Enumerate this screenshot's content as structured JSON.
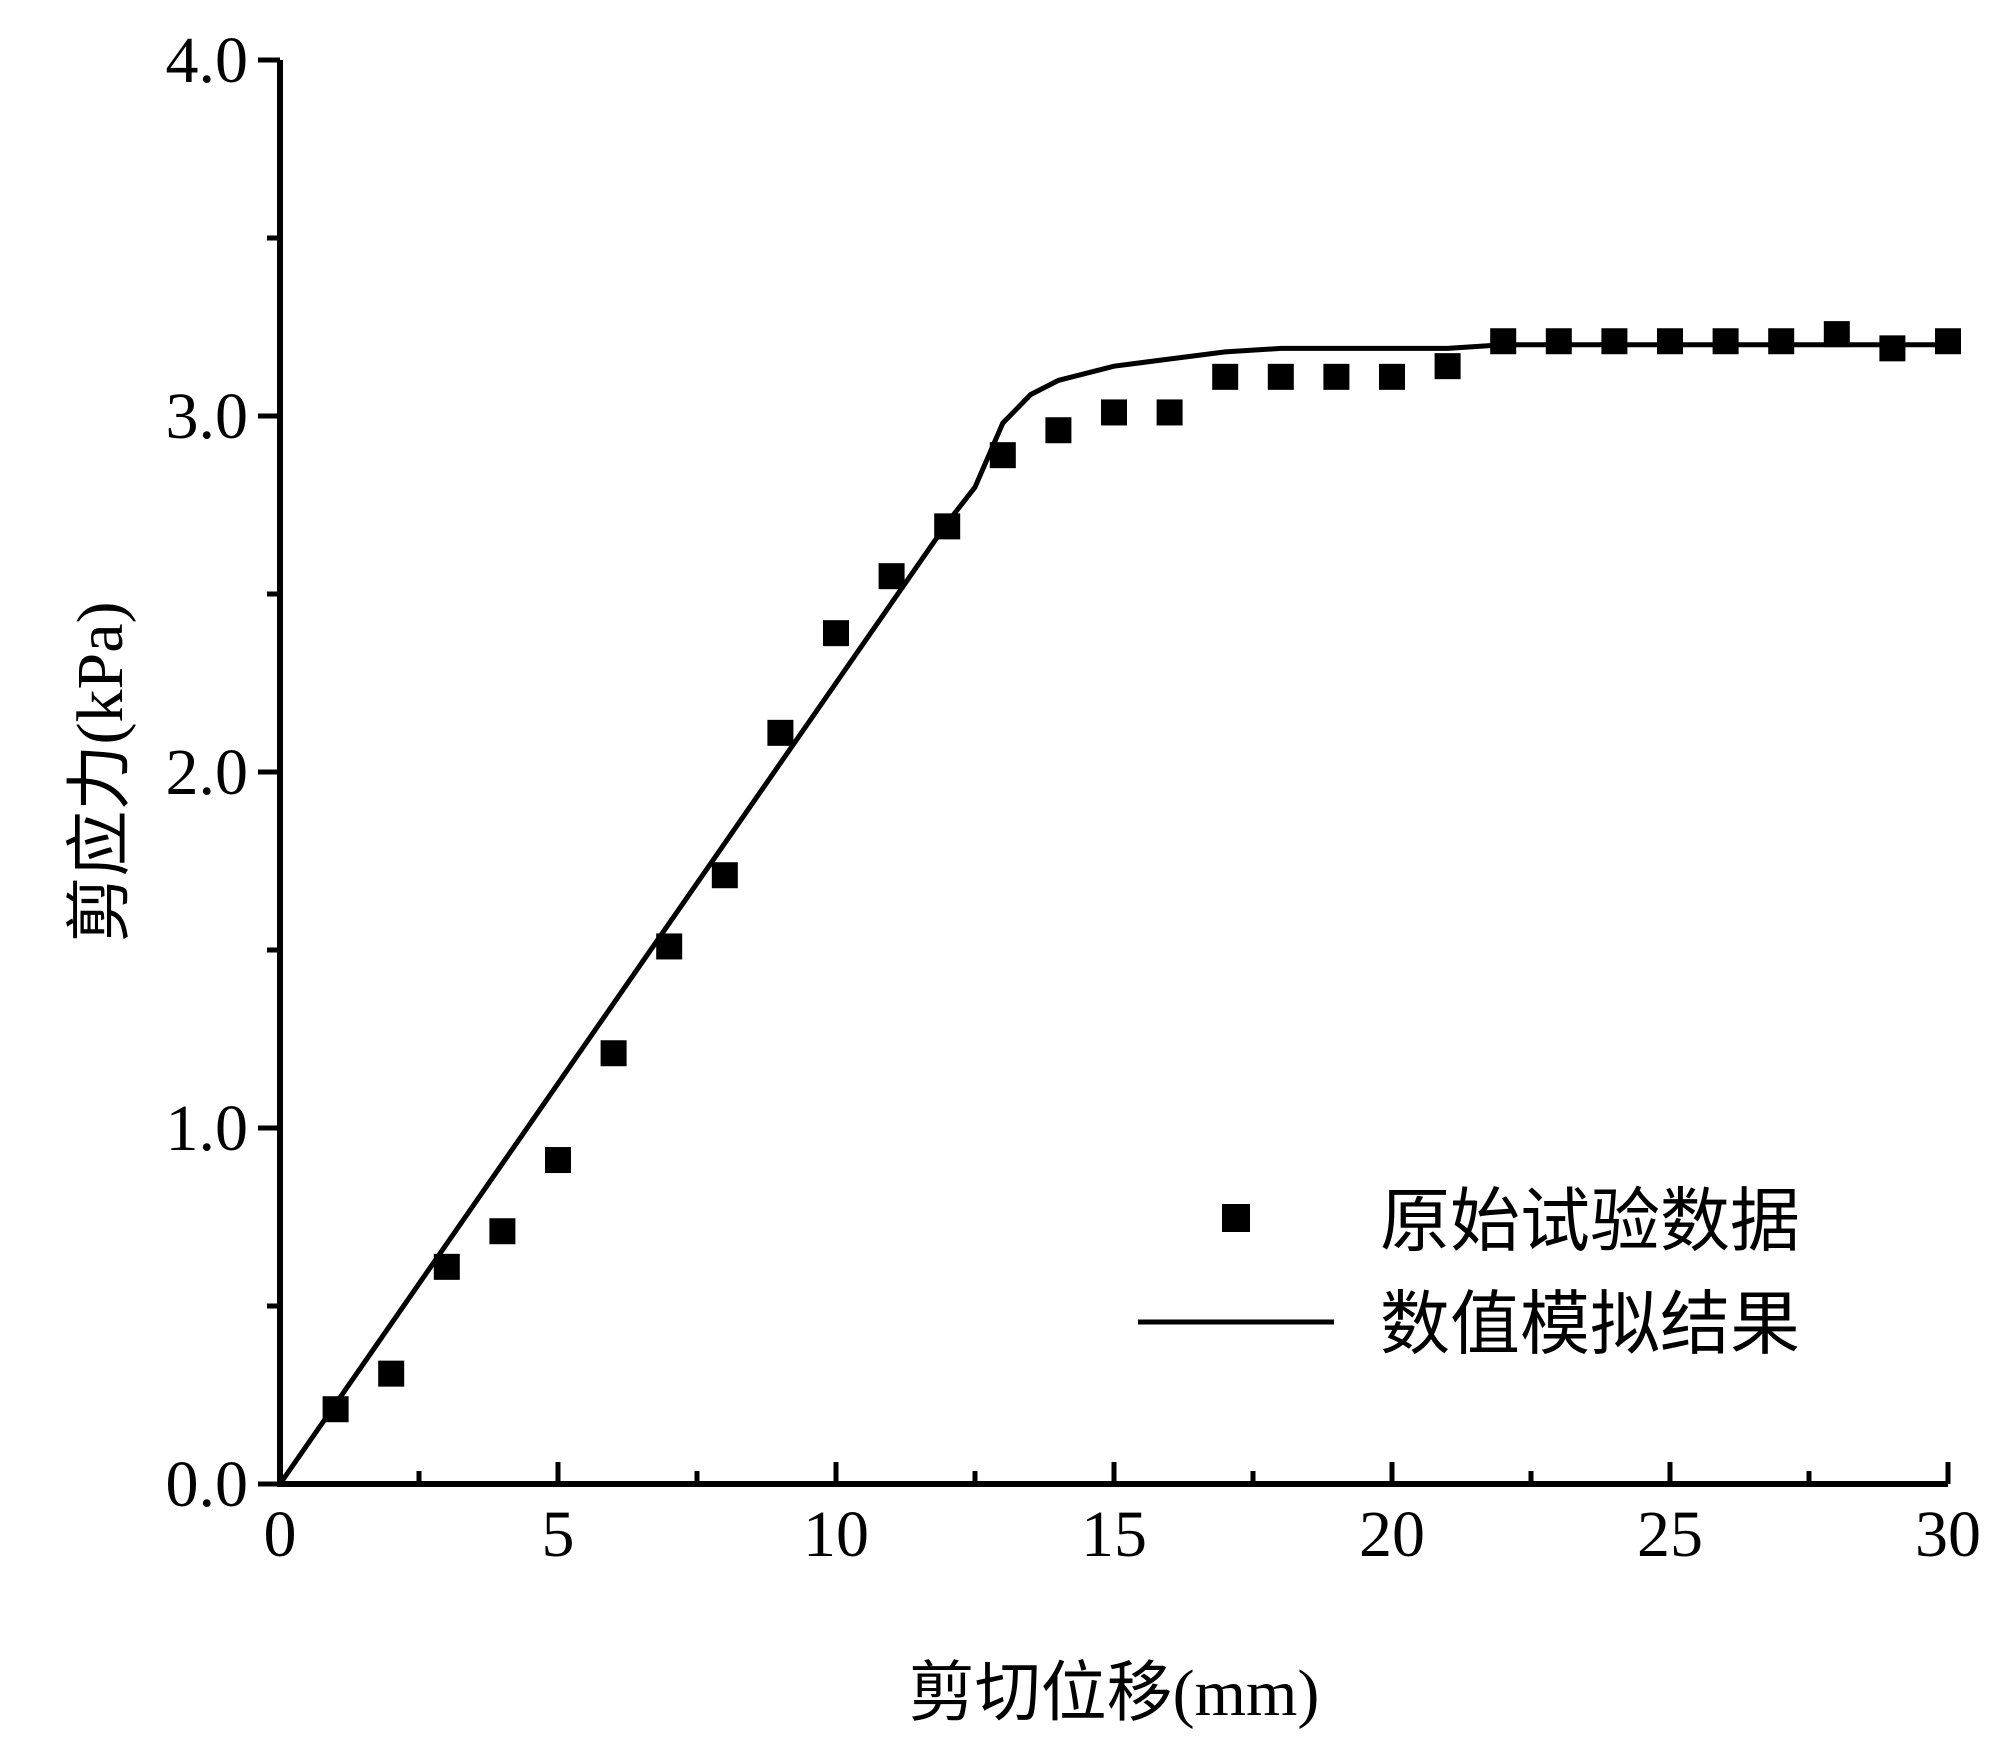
{
  "chart_data": {
    "type": "line",
    "xlabel": "剪切位移(mm)",
    "ylabel": "剪应力(kPa)",
    "xlim": [
      0,
      30
    ],
    "ylim": [
      0,
      4.0
    ],
    "x_ticks": [
      "0",
      "5",
      "10",
      "15",
      "20",
      "25",
      "30"
    ],
    "y_ticks": [
      "0.0",
      "1.0",
      "2.0",
      "3.0",
      "4.0"
    ],
    "grid": false,
    "legend_position": "bottom-right",
    "series": [
      {
        "name": "原始试验数据",
        "kind": "scatter",
        "marker": "square",
        "color": "#000000",
        "x": [
          1,
          2,
          3,
          4,
          5,
          6,
          7,
          8,
          9,
          10,
          11,
          12,
          13,
          14,
          15,
          16,
          17,
          18,
          19,
          20,
          21,
          22,
          23,
          24,
          25,
          26,
          27,
          28,
          29,
          30
        ],
        "y": [
          0.21,
          0.31,
          0.61,
          0.71,
          0.91,
          1.21,
          1.51,
          1.71,
          2.11,
          2.39,
          2.55,
          2.69,
          2.89,
          2.96,
          3.01,
          3.01,
          3.11,
          3.11,
          3.11,
          3.11,
          3.14,
          3.21,
          3.21,
          3.21,
          3.21,
          3.21,
          3.21,
          3.23,
          3.19,
          3.21
        ]
      },
      {
        "name": "数值模拟结果",
        "kind": "line",
        "color": "#000000",
        "x": [
          0,
          2,
          4,
          6,
          8,
          10,
          12,
          12.5,
          13,
          13.5,
          14,
          15,
          16,
          17,
          18,
          19,
          20,
          21,
          22,
          25,
          28,
          30
        ],
        "y": [
          0,
          0.45,
          0.9,
          1.35,
          1.8,
          2.25,
          2.7,
          2.8,
          2.98,
          3.06,
          3.1,
          3.14,
          3.16,
          3.18,
          3.19,
          3.19,
          3.19,
          3.19,
          3.2,
          3.2,
          3.2,
          3.2
        ]
      }
    ]
  }
}
